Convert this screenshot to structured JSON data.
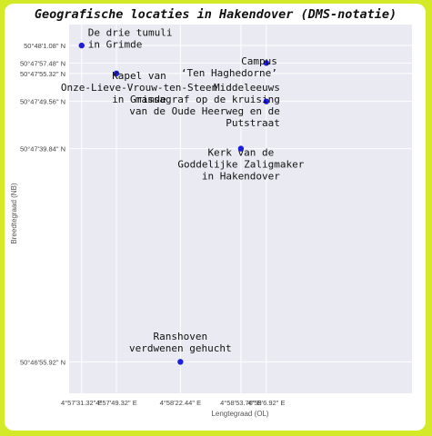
{
  "chart_data": {
    "type": "scatter",
    "title": "Geografische locaties in Hakendover (DMS-notatie)",
    "xlabel": "Lengtegraad (OL)",
    "ylabel": "Breedtegraad (NB)",
    "xlim": [
      4.9569,
      5.0062
    ],
    "ylim": [
      13.7804,
      13.8015
    ],
    "xticks": [
      {
        "value": 4.9587,
        "label": "4°57'31.32\" E"
      },
      {
        "value": 4.9637,
        "label": "4°57'49.32\" E"
      },
      {
        "value": 4.9729,
        "label": "4°58'22.44\" E"
      },
      {
        "value": 4.9816,
        "label": "4°58'53.76\" E"
      },
      {
        "value": 4.985256,
        "label": "4°59'6.92\" E"
      }
    ],
    "yticks": [
      {
        "value": 13.8003,
        "label": "50°48'1.08\" N"
      },
      {
        "value": 13.7993,
        "label": "50°47'57.48\" N"
      },
      {
        "value": 13.7987,
        "label": "50°47'55.32\" N"
      },
      {
        "value": 13.7971,
        "label": "50°47'49.56\" N"
      },
      {
        "value": 13.7944,
        "label": "50°47'39.84\" N"
      },
      {
        "value": 13.7822,
        "label": "50°46'55.92\" N"
      }
    ],
    "grid": true,
    "color": "#1f1fdb",
    "points": [
      {
        "x": 4.9587,
        "y": 13.8003,
        "label": [
          "De drie tumuli",
          "in Grimde"
        ],
        "anchor": "start",
        "lx": 7,
        "ly": -8
      },
      {
        "x": 4.9637,
        "y": 13.7987,
        "label": [
          "Kapel van",
          "Onze-Lieve-Vrouw-ten-Steen",
          "in Grimde"
        ],
        "anchor": "middle",
        "lx": 25,
        "ly": 15
      },
      {
        "x": 4.985256,
        "y": 13.7993,
        "label": [
          "Campus",
          "‘Ten Haghedorne’"
        ],
        "anchor": "end",
        "lx": 12,
        "ly": 4
      },
      {
        "x": 4.985256,
        "y": 13.7971,
        "label": [
          "Middeleeuws",
          "massagraf op de kruising",
          "van de Oude Heerweg en de",
          "Putstraat"
        ],
        "anchor": "end",
        "lx": 15,
        "ly": 4
      },
      {
        "x": 4.9816,
        "y": 13.7944,
        "label": [
          "Kerk van de",
          "Goddelijke Zaligmaker",
          "in Hakendover"
        ],
        "anchor": "middle",
        "lx": 0,
        "ly": 17
      },
      {
        "x": 4.9729,
        "y": 13.7822,
        "label": [
          "Ranshoven",
          "verdwenen gehucht"
        ],
        "anchor": "middle",
        "lx": 0,
        "ly": -22
      }
    ]
  }
}
